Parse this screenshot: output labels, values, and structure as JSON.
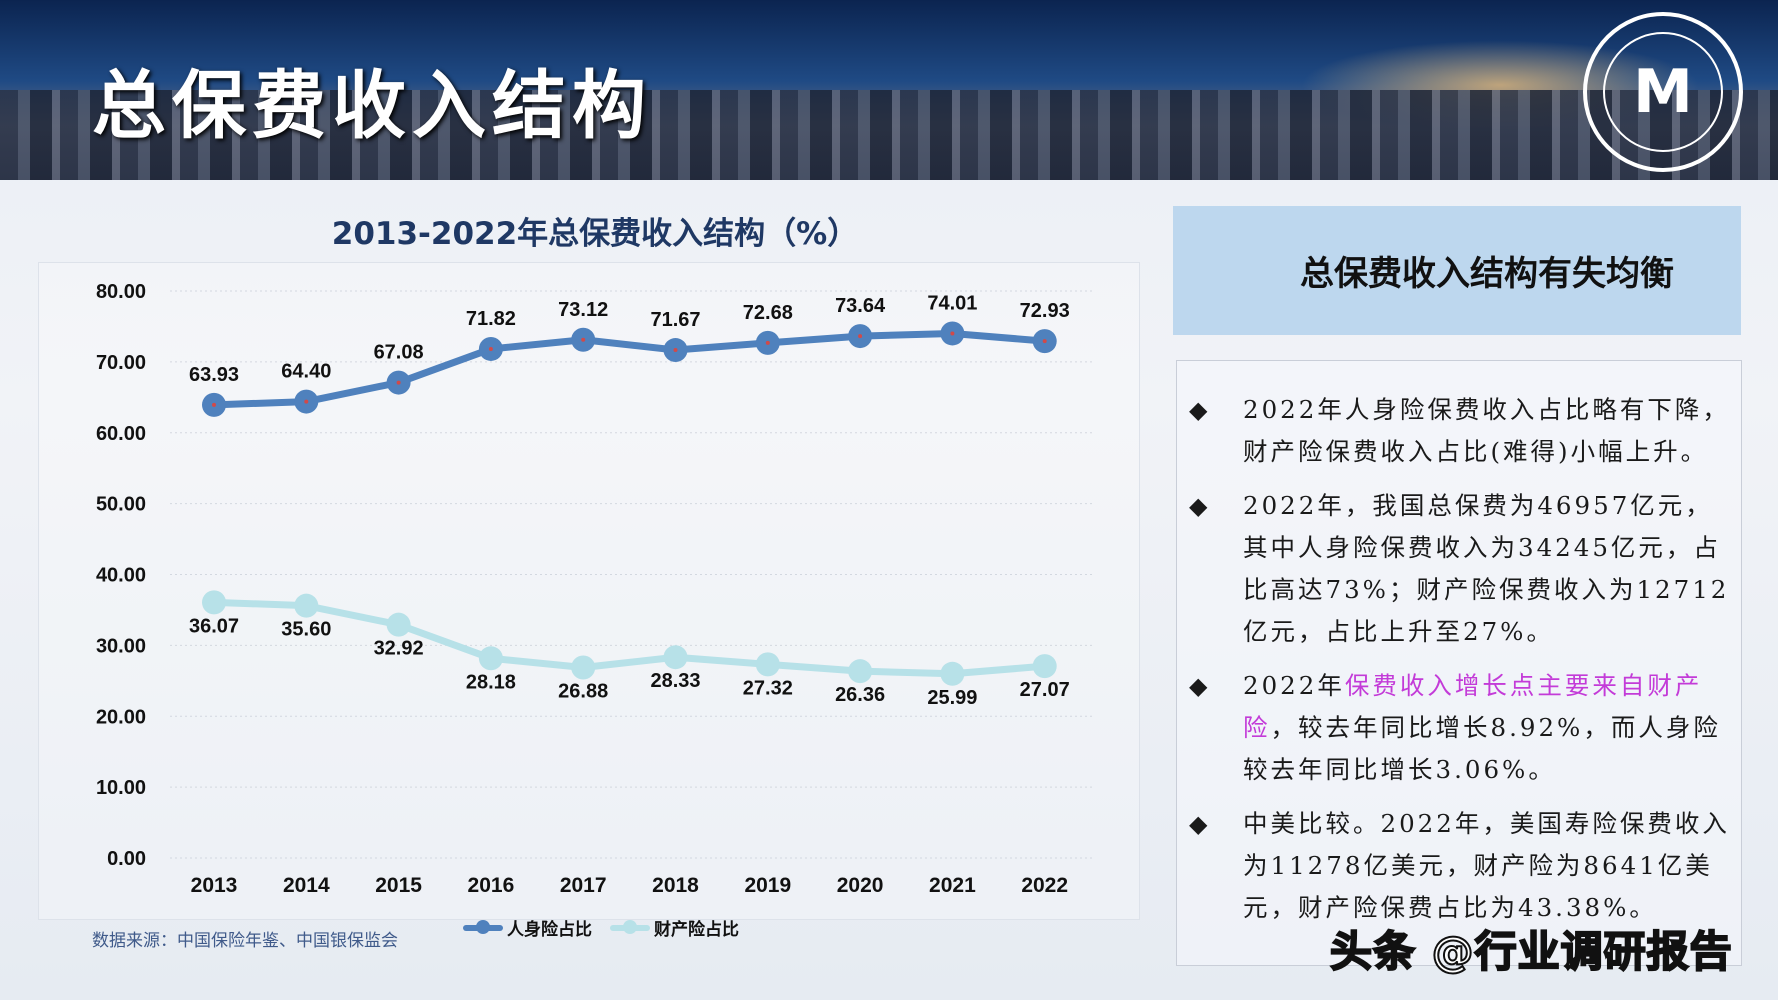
{
  "header": {
    "title": "总保费收入结构",
    "logo_text": "M"
  },
  "chart_data": {
    "type": "line",
    "title": "2013-2022年总保费收入结构（%）",
    "categories": [
      "2013",
      "2014",
      "2015",
      "2016",
      "2017",
      "2018",
      "2019",
      "2020",
      "2021",
      "2022"
    ],
    "series": [
      {
        "name": "人身险占比",
        "values": [
          63.93,
          64.4,
          67.08,
          71.82,
          73.12,
          71.67,
          72.68,
          73.64,
          74.01,
          72.93
        ],
        "color": "#4f81bd"
      },
      {
        "name": "财产险占比",
        "values": [
          36.07,
          35.6,
          32.92,
          28.18,
          26.88,
          28.33,
          27.32,
          26.36,
          25.99,
          27.07
        ],
        "color": "#b7e1e8"
      }
    ],
    "data_labels": [
      [
        "63.93",
        "64.40",
        "67.08",
        "71.82",
        "73.12",
        "71.67",
        "72.68",
        "73.64",
        "74.01",
        "72.93"
      ],
      [
        "36.07",
        "35.60",
        "32.92",
        "28.18",
        "26.88",
        "28.33",
        "27.32",
        "26.36",
        "25.99",
        "27.07"
      ]
    ],
    "yticks": [
      "0.00",
      "10.00",
      "20.00",
      "30.00",
      "40.00",
      "50.00",
      "60.00",
      "70.00",
      "80.00"
    ],
    "ylim": [
      0,
      80
    ],
    "grid": true,
    "legend": "bottom",
    "source": "数据来源：中国保险年鉴、中国银保监会"
  },
  "summary": {
    "heading": "总保费收入结构有失均衡",
    "points": [
      {
        "text": "2022年人身险保费收入占比略有下降，财产险保费收入占比(难得)小幅上升。"
      },
      {
        "text": "2022年，我国总保费为46957亿元，其中人身险保费收入为34245亿元，占比高达73%；财产险保费收入为12712亿元，占比上升至27%。"
      },
      {
        "pre": "2022年",
        "highlight": "保费收入增长点主要来自财产险",
        "post": "，较去年同比增长8.92%，而人身险较去年同比增长3.06%。"
      },
      {
        "text": "中美比较。2022年，美国寿险保费收入为11278亿美元，财产险为8641亿美元，财产险保费占比为43.38%。"
      }
    ],
    "bullet": "◆",
    "highlight_color": "#c33bd8"
  },
  "watermark": "头条 @行业调研报告"
}
